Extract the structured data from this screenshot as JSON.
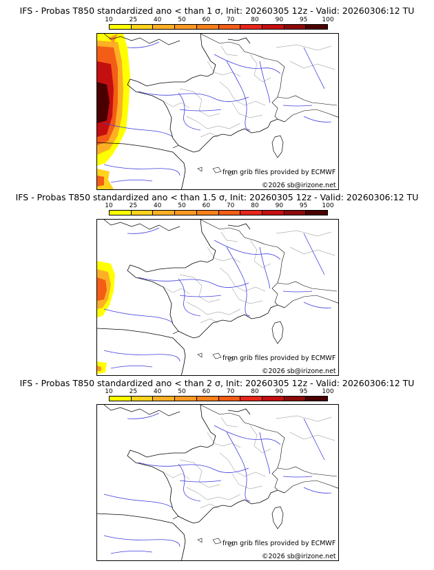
{
  "panels": [
    {
      "title": "IFS - Probas T850  standardized ano < than 1 σ, Init: 20260305 12z - Valid: 20260306:12 TU",
      "threshold": "1 σ",
      "credit_source": "from grib files provided by ECMWF",
      "credit_copyright": "©2026 sb@irizone.net",
      "probability_extent": "large"
    },
    {
      "title": "IFS - Probas T850  standardized ano < than 1.5 σ, Init: 20260305 12z - Valid: 20260306:12 TU",
      "threshold": "1.5 σ",
      "credit_source": "from grib files provided by ECMWF",
      "credit_copyright": "©2026 sb@irizone.net",
      "probability_extent": "small"
    },
    {
      "title": "IFS - Probas T850  standardized ano < than 2 σ, Init: 20260305 12z - Valid: 20260306:12 TU",
      "threshold": "2 σ",
      "credit_source": "from grib files provided by ECMWF",
      "credit_copyright": "©2026 sb@irizone.net",
      "probability_extent": "none"
    }
  ],
  "colorbar": {
    "ticks": [
      "10",
      "25",
      "40",
      "50",
      "60",
      "70",
      "80",
      "90",
      "95",
      "100"
    ],
    "colors": [
      "#ffff00",
      "#ffd21e",
      "#fdb025",
      "#fb9924",
      "#f7801a",
      "#f45d15",
      "#e7261c",
      "#c40f10",
      "#8d0a0a",
      "#4a0000"
    ]
  }
}
